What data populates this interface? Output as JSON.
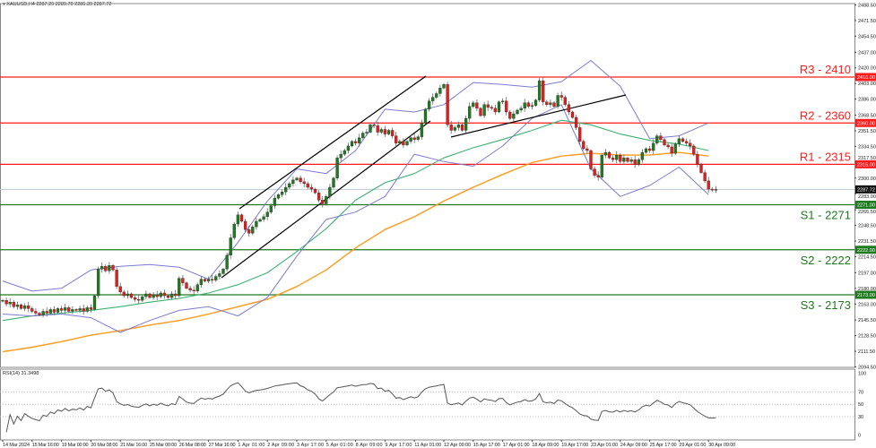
{
  "header": {
    "symbol": "XAUUSD,H4",
    "ohlc": "2287.29 2289.70 2286.39 2287.72"
  },
  "rsi_label": "RSI(14) 31.3498",
  "chart_data": {
    "type": "candlestick",
    "symbol": "XAUUSD",
    "timeframe": "H4",
    "colors": {
      "bull": "#1e7a1e",
      "bear": "#e31c1c",
      "resistance": "#ff1a1a",
      "support": "#1f7a1f",
      "bollinger": "#7b7bd1",
      "ma_fast": "#3cb371",
      "ma_slow": "#ff9a1a",
      "rsi": "#555555"
    },
    "time_labels": [
      "14 Mar 2024",
      "15 Mar 16:00",
      "19 Mar 00:00",
      "20 Mar 08:00",
      "21 Mar 16:00",
      "25 Mar 00:00",
      "26 Mar 08:00",
      "27 Mar 16:00",
      "1 Apr 01:00",
      "2 Apr 09:00",
      "3 Apr 17:00",
      "5 Apr 01:00",
      "8 Apr 09:00",
      "9 Apr 17:00",
      "11 Apr 01:00",
      "12 Apr 09:00",
      "15 Apr 17:00",
      "17 Apr 01:00",
      "18 Apr 09:00",
      "19 Apr 17:00",
      "23 Apr 01:00",
      "24 Apr 09:00",
      "25 Apr 17:00",
      "29 Apr 01:00",
      "30 Apr 09:00"
    ],
    "price_ticks": [
      "2488.50",
      "2471.50",
      "2454.50",
      "2437.00",
      "2420.00",
      "2403.00",
      "2386.00",
      "2368.50",
      "2351.50",
      "2334.50",
      "2317.50",
      "2300.00",
      "2283.00",
      "2265.50",
      "2248.50",
      "2231.50",
      "2214.50",
      "2197.00",
      "2180.00",
      "2163.00",
      "2145.50",
      "2128.50",
      "2111.50",
      "2094.50"
    ],
    "ylim": [
      2094.5,
      2488.5
    ],
    "closes": [
      2167,
      2163,
      2165,
      2160,
      2162,
      2158,
      2161,
      2158,
      2155,
      2153,
      2151,
      2155,
      2153,
      2157,
      2154,
      2158,
      2156,
      2159,
      2155,
      2157,
      2156,
      2158,
      2155,
      2159,
      2157,
      2172,
      2201,
      2204,
      2199,
      2205,
      2200,
      2182,
      2176,
      2172,
      2174,
      2170,
      2168,
      2167,
      2171,
      2174,
      2170,
      2173,
      2171,
      2175,
      2172,
      2170,
      2174,
      2172,
      2191,
      2186,
      2180,
      2178,
      2177,
      2184,
      2190,
      2188,
      2190,
      2189,
      2193,
      2196,
      2201,
      2216,
      2235,
      2250,
      2260,
      2253,
      2244,
      2240,
      2247,
      2253,
      2255,
      2258,
      2263,
      2270,
      2278,
      2282,
      2285,
      2290,
      2294,
      2298,
      2300,
      2296,
      2294,
      2290,
      2288,
      2284,
      2276,
      2272,
      2280,
      2290,
      2300,
      2322,
      2326,
      2330,
      2335,
      2340,
      2338,
      2344,
      2349,
      2350,
      2358,
      2357,
      2350,
      2353,
      2348,
      2352,
      2346,
      2338,
      2340,
      2336,
      2340,
      2344,
      2342,
      2345,
      2360,
      2375,
      2384,
      2388,
      2392,
      2398,
      2402,
      2358,
      2352,
      2355,
      2358,
      2352,
      2365,
      2378,
      2382,
      2376,
      2368,
      2380,
      2377,
      2376,
      2372,
      2383,
      2384,
      2372,
      2365,
      2370,
      2374,
      2376,
      2382,
      2378,
      2379,
      2385,
      2406,
      2383,
      2380,
      2382,
      2378,
      2390,
      2388,
      2380,
      2372,
      2366,
      2355,
      2340,
      2332,
      2330,
      2310,
      2303,
      2301,
      2325,
      2328,
      2322,
      2320,
      2325,
      2318,
      2322,
      2318,
      2320,
      2315,
      2320,
      2328,
      2332,
      2330,
      2338,
      2346,
      2342,
      2336,
      2334,
      2327,
      2337,
      2343,
      2340,
      2338,
      2335,
      2326,
      2315,
      2306,
      2297,
      2288,
      2287,
      2287.72
    ],
    "indicators_at_time_labels": {
      "ma_slow": [
        2111,
        2116,
        2122,
        2129,
        2134,
        2140,
        2145,
        2152,
        2160,
        2168,
        2182,
        2200,
        2224,
        2244,
        2258,
        2275,
        2290,
        2304,
        2317,
        2324,
        2327,
        2325,
        2325,
        2328,
        2324
      ],
      "ma_fast": [
        2145,
        2150,
        2153,
        2156,
        2160,
        2165,
        2169,
        2175,
        2184,
        2197,
        2220,
        2245,
        2276,
        2295,
        2305,
        2322,
        2333,
        2342,
        2352,
        2363,
        2358,
        2348,
        2341,
        2337,
        2330
      ],
      "bollinger_upper": [
        2188,
        2177,
        2180,
        2200,
        2204,
        2206,
        2203,
        2190,
        2230,
        2275,
        2310,
        2305,
        2330,
        2375,
        2372,
        2380,
        2404,
        2402,
        2399,
        2405,
        2428,
        2400,
        2343,
        2346,
        2360
      ],
      "bollinger_lower": [
        2152,
        2150,
        2152,
        2148,
        2132,
        2145,
        2156,
        2160,
        2150,
        2170,
        2215,
        2255,
        2263,
        2280,
        2326,
        2318,
        2313,
        2335,
        2365,
        2380,
        2310,
        2280,
        2292,
        2312,
        2282
      ]
    },
    "levels": [
      {
        "label": "R3 - 2410",
        "price": 2410,
        "tag": "2410.00",
        "kind": "resistance"
      },
      {
        "label": "R2 - 2360",
        "price": 2360,
        "tag": "2360.00",
        "kind": "resistance"
      },
      {
        "label": "R1 - 2315",
        "price": 2315,
        "tag": "2315.00",
        "kind": "resistance"
      },
      {
        "label": "S1 - 2271",
        "price": 2271,
        "tag": "2271.00",
        "kind": "support"
      },
      {
        "label": "S2 - 2222",
        "price": 2222,
        "tag": "2222.00",
        "kind": "support"
      },
      {
        "label": "S3 - 2173",
        "price": 2173,
        "tag": "2173.00",
        "kind": "support"
      }
    ],
    "current_price": {
      "price": 2287.72,
      "tag": "2287.72"
    },
    "rsi": {
      "period": 14,
      "ticks": [
        "100",
        "70",
        "50",
        "30",
        "0"
      ],
      "levels": [
        70,
        50,
        30
      ]
    }
  }
}
